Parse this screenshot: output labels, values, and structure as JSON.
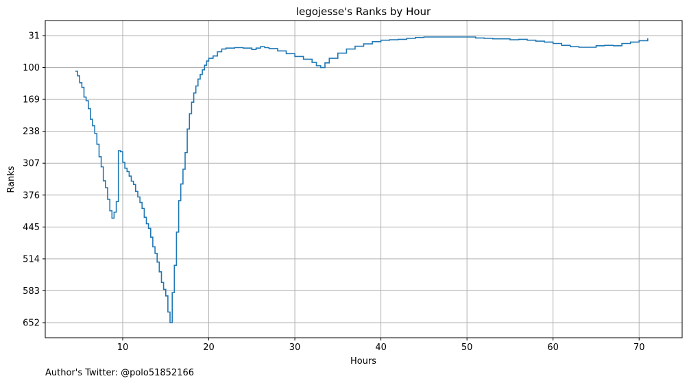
{
  "chart_data": {
    "type": "line",
    "step": true,
    "title": "legojesse's Ranks by Hour",
    "xlabel": "Hours",
    "ylabel": "Ranks",
    "xlim": [
      1,
      75
    ],
    "ylim": [
      31,
      652
    ],
    "y_inverted": true,
    "grid": true,
    "x_ticks": [
      "10",
      "20",
      "30",
      "40",
      "50",
      "60",
      "70"
    ],
    "x_tick_values": [
      10,
      20,
      30,
      40,
      50,
      60,
      70
    ],
    "y_ticks": [
      "31",
      "100",
      "169",
      "238",
      "307",
      "376",
      "445",
      "514",
      "583",
      "652"
    ],
    "y_tick_values": [
      31,
      100,
      169,
      238,
      307,
      376,
      445,
      514,
      583,
      652
    ],
    "series": [
      {
        "color": "#1f77b4",
        "x": [
          4.5,
          4.75,
          5.0,
          5.25,
          5.5,
          5.75,
          6.0,
          6.25,
          6.5,
          6.75,
          7.0,
          7.25,
          7.5,
          7.75,
          8.0,
          8.25,
          8.5,
          8.75,
          9.0,
          9.25,
          9.5,
          9.75,
          10.0,
          10.25,
          10.5,
          10.75,
          11.0,
          11.25,
          11.5,
          11.75,
          12.0,
          12.25,
          12.5,
          12.75,
          13.0,
          13.25,
          13.5,
          13.75,
          14.0,
          14.25,
          14.5,
          14.75,
          15.0,
          15.25,
          15.5,
          15.75,
          16.0,
          16.25,
          16.5,
          16.75,
          17.0,
          17.25,
          17.5,
          17.75,
          18.0,
          18.25,
          18.5,
          18.75,
          19.0,
          19.25,
          19.5,
          19.75,
          20.0,
          20.5,
          21.0,
          21.5,
          22.0,
          23.0,
          24.0,
          25.0,
          25.5,
          26.0,
          26.5,
          27.0,
          28.0,
          29.0,
          30.0,
          31.0,
          32.0,
          32.5,
          33.0,
          33.5,
          34.0,
          35.0,
          36.0,
          37.0,
          38.0,
          39.0,
          40.0,
          41.0,
          42.0,
          43.0,
          44.0,
          45.0,
          46.0,
          47.0,
          48.0,
          49.0,
          50.0,
          51.0,
          52.0,
          53.0,
          54.0,
          55.0,
          56.0,
          57.0,
          58.0,
          59.0,
          60.0,
          61.0,
          62.0,
          63.0,
          64.0,
          65.0,
          66.0,
          67.0,
          68.0,
          69.0,
          70.0,
          71.0
        ],
        "y": [
          108,
          118,
          133,
          143,
          164,
          172,
          189,
          212,
          226,
          243,
          266,
          293,
          315,
          345,
          360,
          385,
          410,
          426,
          413,
          390,
          280,
          282,
          305,
          318,
          325,
          335,
          346,
          353,
          368,
          380,
          392,
          405,
          424,
          438,
          448,
          467,
          488,
          502,
          521,
          542,
          565,
          580,
          594,
          629,
          652,
          587,
          528,
          456,
          388,
          352,
          320,
          284,
          233,
          200,
          175,
          155,
          140,
          125,
          115,
          105,
          95,
          86,
          80,
          75,
          66,
          60,
          58,
          57,
          58,
          61,
          58,
          55,
          57,
          59,
          64,
          70,
          76,
          82,
          89,
          96,
          100,
          90,
          80,
          69,
          60,
          54,
          49,
          44,
          41,
          40,
          39,
          37,
          35,
          34,
          34,
          34,
          34,
          34,
          34,
          36,
          37,
          38,
          38,
          40,
          39,
          41,
          43,
          45,
          48,
          52,
          55,
          56,
          56,
          53,
          52,
          53,
          48,
          45,
          42,
          37
        ]
      }
    ]
  },
  "author": "Author's Twitter: @polo51852166"
}
